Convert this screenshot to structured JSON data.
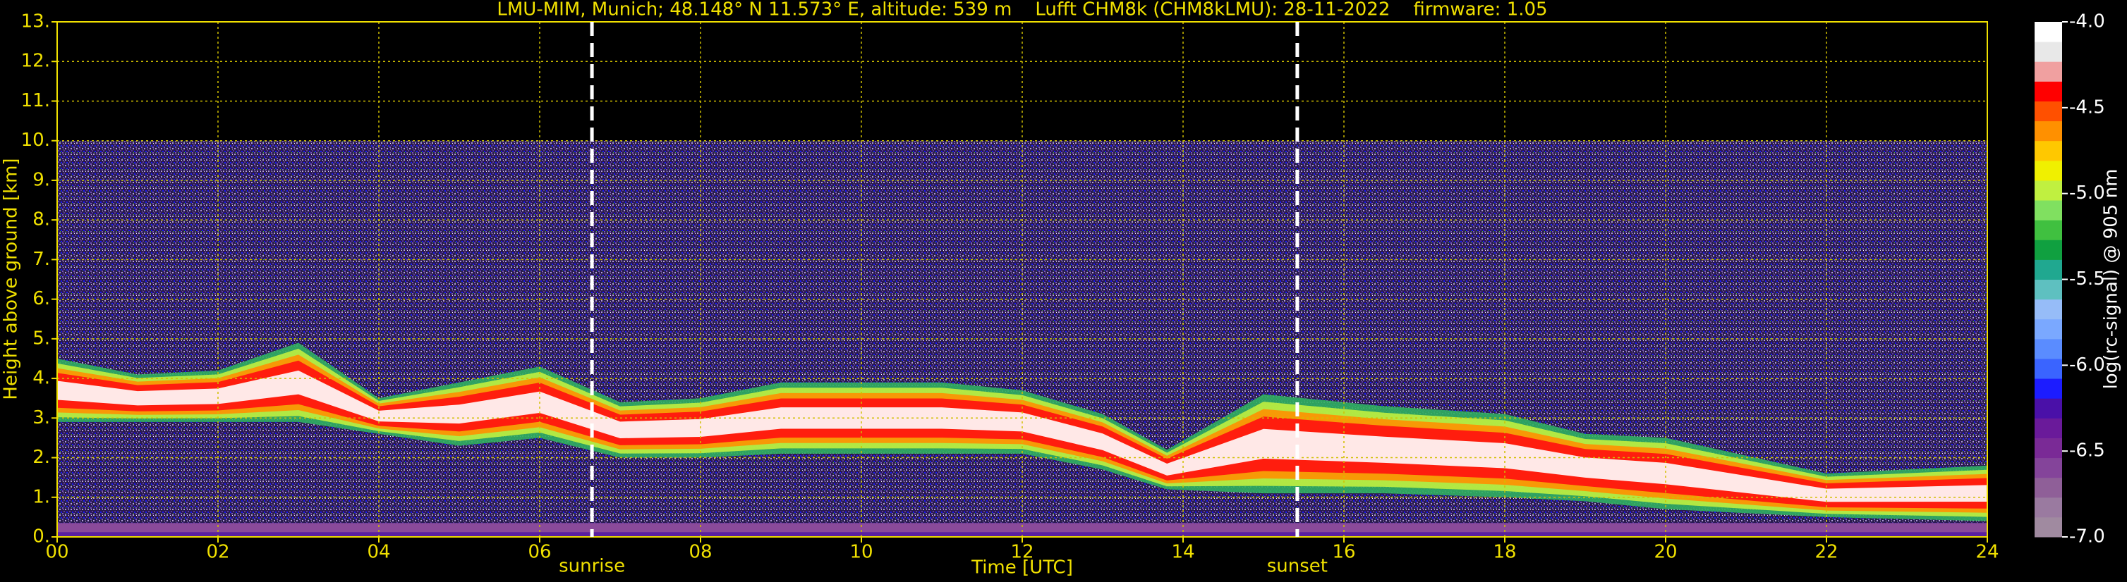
{
  "chart_data": {
    "type": "heatmap",
    "title": "LMU-MIM, Munich; 48.148° N 11.573° E, altitude: 539 m    Lufft CHM8k (CHM8kLMU): 28-11-2022    firmware: 1.05",
    "xlabel": "Time [UTC]",
    "ylabel": "Height above ground [km]",
    "xlim": [
      0,
      24
    ],
    "xticks": [
      {
        "value": 0,
        "label": "00"
      },
      {
        "value": 2,
        "label": "02"
      },
      {
        "value": 4,
        "label": "04"
      },
      {
        "value": 6,
        "label": "06"
      },
      {
        "value": 8,
        "label": "08"
      },
      10,
      12,
      14,
      16,
      18,
      20,
      22,
      24
    ],
    "ylim": [
      0,
      13
    ],
    "yticks": [
      {
        "value": 0,
        "label": "0."
      },
      {
        "value": 1,
        "label": "1."
      },
      {
        "value": 2,
        "label": "2."
      },
      {
        "value": 3,
        "label": "3."
      },
      {
        "value": 4,
        "label": "4."
      },
      {
        "value": 5,
        "label": "5."
      },
      {
        "value": 6,
        "label": "6."
      },
      {
        "value": 7,
        "label": "7."
      },
      {
        "value": 8,
        "label": "8."
      },
      {
        "value": 9,
        "label": "9."
      },
      {
        "value": 10,
        "label": "10."
      },
      {
        "value": 11,
        "label": "11."
      },
      {
        "value": 12,
        "label": "12."
      },
      {
        "value": 13,
        "label": "13."
      }
    ],
    "grid": true,
    "annotations": [
      {
        "text": "sunrise",
        "x": 6.65
      },
      {
        "text": "sunset",
        "x": 15.42
      }
    ],
    "colorbar": {
      "label": "log(rc-signal) @ 905 nm",
      "lim": [
        -7,
        -4
      ],
      "ticks": [
        {
          "value": -4,
          "label": "-4.0"
        },
        {
          "value": -4.5,
          "label": "-4.5"
        },
        {
          "value": -5,
          "label": "-5.0"
        },
        {
          "value": -5.5,
          "label": "-5.5"
        },
        {
          "value": -6,
          "label": "-6.0"
        },
        {
          "value": -6.5,
          "label": "-6.5"
        },
        {
          "value": -7,
          "label": "-7.0"
        }
      ],
      "colors": [
        "#a08aa0",
        "#9a7aa0",
        "#8f5f98",
        "#84449a",
        "#7a2a96",
        "#6a1a9a",
        "#4a10a8",
        "#1c1cff",
        "#3a64ff",
        "#5a8cff",
        "#7aa8ff",
        "#96bcf8",
        "#5ec0c0",
        "#20a890",
        "#10a040",
        "#40c040",
        "#80e060",
        "#c0f040",
        "#f0f000",
        "#ffc800",
        "#ff9000",
        "#ff5000",
        "#ff0000",
        "#f0a0a0",
        "#e8e8e8",
        "#ffffff"
      ]
    }
  }
}
